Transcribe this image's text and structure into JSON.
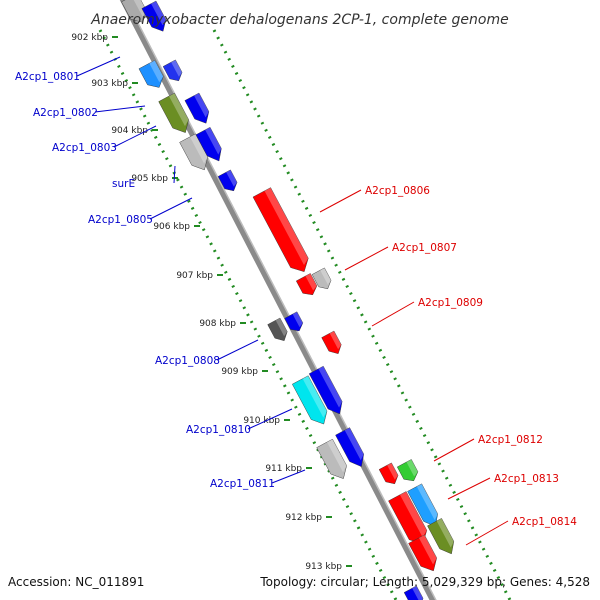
{
  "title": "Anaeromyxobacter dehalogenans 2CP-1, complete genome",
  "footer": {
    "accession": "Accession: NC_011891",
    "topology": "Topology: circular; Length: 5,029,329 bp; Genes: 4,528"
  },
  "colors": {
    "plus_strand_label": "#0000cc",
    "minus_strand_label": "#dd0000",
    "gc_dots": "#228b22",
    "backbone": "#888888"
  },
  "ticks": [
    {
      "label": "902 kbp"
    },
    {
      "label": "903 kbp"
    },
    {
      "label": "904 kbp"
    },
    {
      "label": "905 kbp"
    },
    {
      "label": "906 kbp"
    },
    {
      "label": "907 kbp"
    },
    {
      "label": "908 kbp"
    },
    {
      "label": "909 kbp"
    },
    {
      "label": "910 kbp"
    },
    {
      "label": "911 kbp"
    },
    {
      "label": "912 kbp"
    },
    {
      "label": "913 kbp"
    }
  ],
  "left_labels": [
    {
      "label": "A2cp1_0801"
    },
    {
      "label": "A2cp1_0802"
    },
    {
      "label": "A2cp1_0803"
    },
    {
      "label": "surE"
    },
    {
      "label": "A2cp1_0805"
    },
    {
      "label": "A2cp1_0808"
    },
    {
      "label": "A2cp1_0810"
    },
    {
      "label": "A2cp1_0811"
    }
  ],
  "right_labels": [
    {
      "label": "A2cp1_0806"
    },
    {
      "label": "A2cp1_0807"
    },
    {
      "label": "A2cp1_0809"
    },
    {
      "label": "A2cp1_0812"
    },
    {
      "label": "A2cp1_0813"
    },
    {
      "label": "A2cp1_0814"
    }
  ],
  "features": [
    {
      "color": "#aaaaaa"
    },
    {
      "color": "#0000ee"
    },
    {
      "color": "#1e90ff"
    },
    {
      "color": "#2233ee"
    },
    {
      "color": "#6b8e23"
    },
    {
      "color": "#0000ee"
    },
    {
      "color": "#bbbbbb"
    },
    {
      "color": "#0000ee"
    },
    {
      "color": "#0000ee"
    },
    {
      "color": "#ff0000"
    },
    {
      "color": "#ff0000"
    },
    {
      "color": "#bbbbbb"
    },
    {
      "color": "#555555"
    },
    {
      "color": "#0000ee"
    },
    {
      "color": "#ff0000"
    },
    {
      "color": "#00e5ee"
    },
    {
      "color": "#0000ee"
    },
    {
      "color": "#bbbbbb"
    },
    {
      "color": "#0000ee"
    },
    {
      "color": "#ff0000"
    },
    {
      "color": "#33cc33"
    },
    {
      "color": "#ff0000"
    },
    {
      "color": "#1e9fff"
    },
    {
      "color": "#ff0000"
    },
    {
      "color": "#6b8e23"
    },
    {
      "color": "#0000ee"
    }
  ]
}
